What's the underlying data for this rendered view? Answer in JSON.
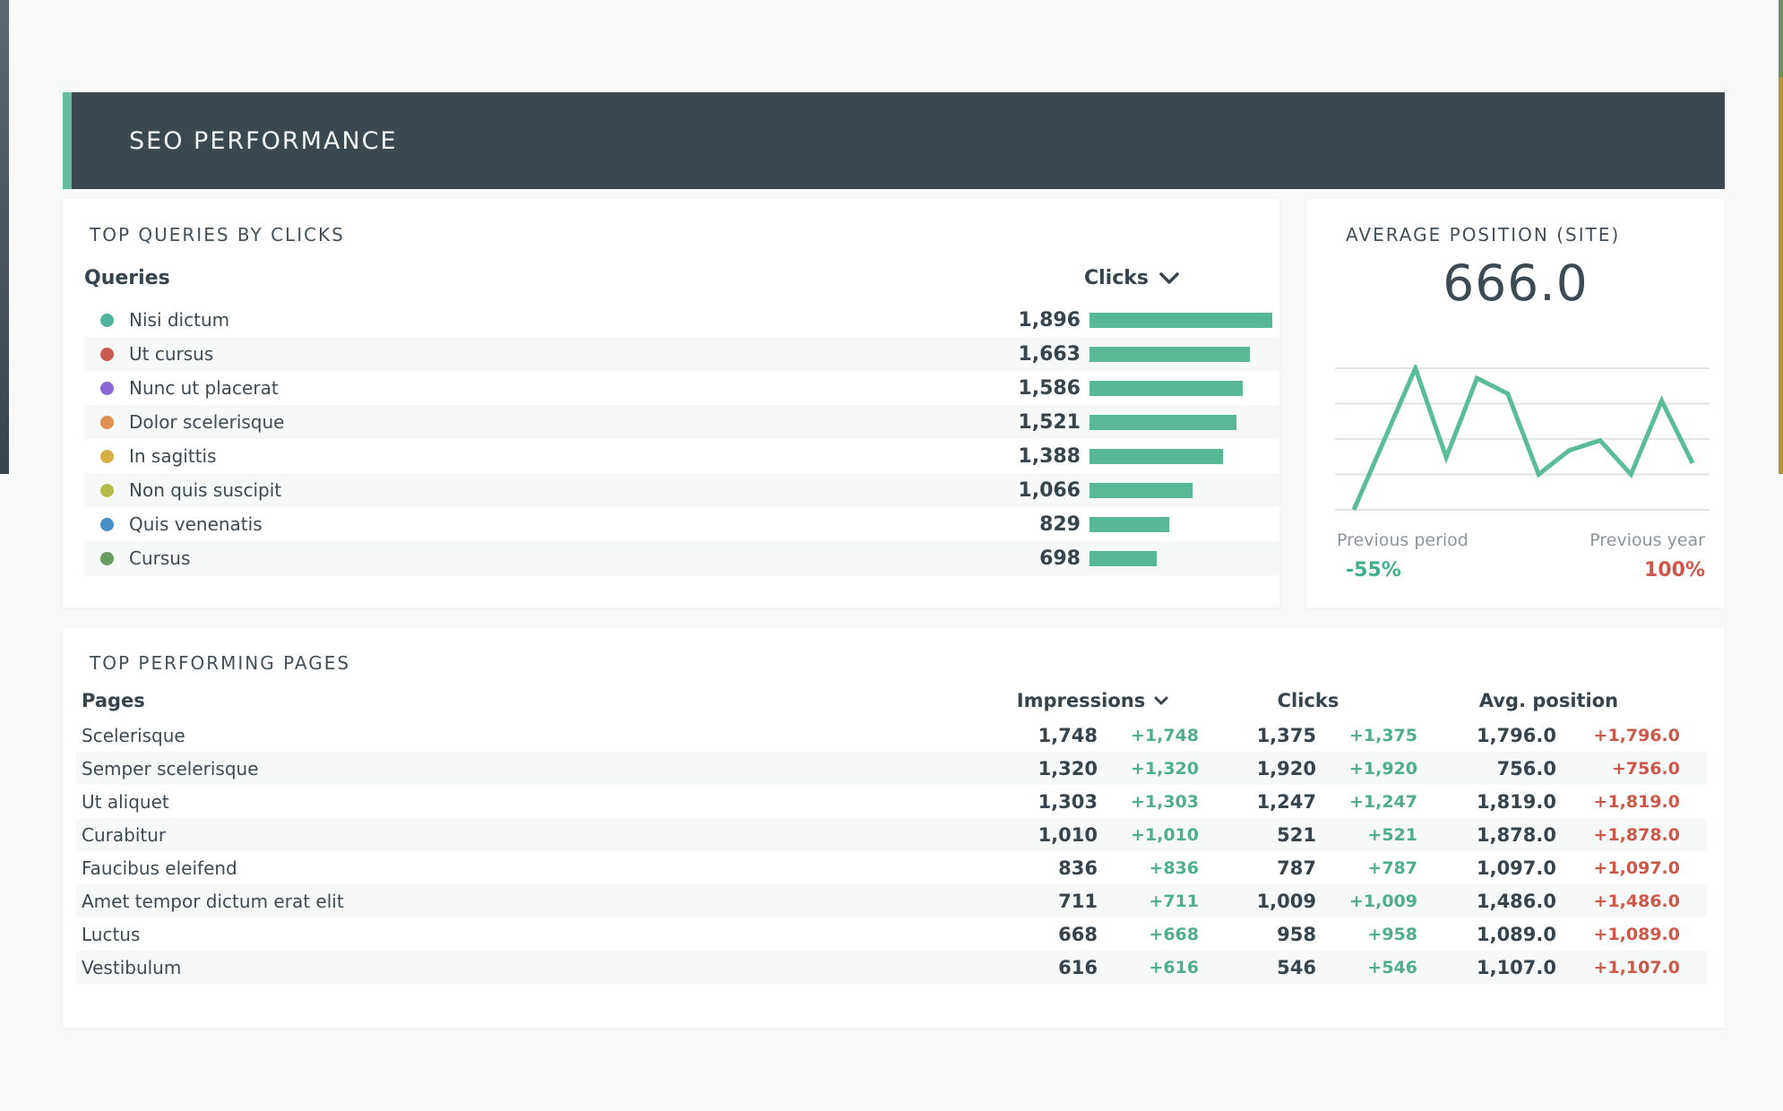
{
  "colors": {
    "accent_green": "#66bd9e",
    "banner_bg": "#3b4850",
    "bar_teal": "#58b795",
    "positive_green": "#4fae8d",
    "negative_red": "#cc584a",
    "text_dark": "#3c4a54",
    "text_muted": "#8b959c"
  },
  "header": {
    "title": "SEO PERFORMANCE"
  },
  "top_queries": {
    "title": "TOP QUERIES BY CLICKS",
    "col_query": "Queries",
    "col_clicks": "Clicks",
    "rows": [
      {
        "label": "Nisi dictum",
        "clicks": "1,896",
        "color": "#4fb39b"
      },
      {
        "label": "Ut cursus",
        "clicks": "1,663",
        "color": "#c95c51"
      },
      {
        "label": "Nunc ut placerat",
        "clicks": "1,586",
        "color": "#8a68d2"
      },
      {
        "label": "Dolor scelerisque",
        "clicks": "1,521",
        "color": "#de9051"
      },
      {
        "label": "In sagittis",
        "clicks": "1,388",
        "color": "#d4af43"
      },
      {
        "label": "Non quis suscipit",
        "clicks": "1,066",
        "color": "#b4bd4a"
      },
      {
        "label": "Quis venenatis",
        "clicks": "829",
        "color": "#478fc4"
      },
      {
        "label": "Cursus",
        "clicks": "698",
        "color": "#689b5e"
      }
    ]
  },
  "avg_position": {
    "title": "AVERAGE POSITION (SITE)",
    "value": "666.0",
    "prev_period_label": "Previous period",
    "prev_period_value": "-55%",
    "prev_year_label": "Previous year",
    "prev_year_value": "100%"
  },
  "top_pages": {
    "title": "TOP PERFORMING PAGES",
    "col_pages": "Pages",
    "col_impressions": "Impressions",
    "col_clicks": "Clicks",
    "col_avg_position": "Avg. position",
    "rows": [
      {
        "page": "Scelerisque",
        "impressions": "1,748",
        "impressions_delta": "+1,748",
        "clicks": "1,375",
        "clicks_delta": "+1,375",
        "avg_position": "1,796.0",
        "avg_position_delta": "+1,796.0"
      },
      {
        "page": "Semper scelerisque",
        "impressions": "1,320",
        "impressions_delta": "+1,320",
        "clicks": "1,920",
        "clicks_delta": "+1,920",
        "avg_position": "756.0",
        "avg_position_delta": "+756.0"
      },
      {
        "page": "Ut aliquet",
        "impressions": "1,303",
        "impressions_delta": "+1,303",
        "clicks": "1,247",
        "clicks_delta": "+1,247",
        "avg_position": "1,819.0",
        "avg_position_delta": "+1,819.0"
      },
      {
        "page": "Curabitur",
        "impressions": "1,010",
        "impressions_delta": "+1,010",
        "clicks": "521",
        "clicks_delta": "+521",
        "avg_position": "1,878.0",
        "avg_position_delta": "+1,878.0"
      },
      {
        "page": "Faucibus eleifend",
        "impressions": "836",
        "impressions_delta": "+836",
        "clicks": "787",
        "clicks_delta": "+787",
        "avg_position": "1,097.0",
        "avg_position_delta": "+1,097.0"
      },
      {
        "page": "Amet tempor dictum erat elit",
        "impressions": "711",
        "impressions_delta": "+711",
        "clicks": "1,009",
        "clicks_delta": "+1,009",
        "avg_position": "1,486.0",
        "avg_position_delta": "+1,486.0"
      },
      {
        "page": "Luctus",
        "impressions": "668",
        "impressions_delta": "+668",
        "clicks": "958",
        "clicks_delta": "+958",
        "avg_position": "1,089.0",
        "avg_position_delta": "+1,089.0"
      },
      {
        "page": "Vestibulum",
        "impressions": "616",
        "impressions_delta": "+616",
        "clicks": "546",
        "clicks_delta": "+546",
        "avg_position": "1,107.0",
        "avg_position_delta": "+1,107.0"
      }
    ]
  },
  "chart_data": [
    {
      "type": "bar",
      "orientation": "horizontal",
      "title": "TOP QUERIES BY CLICKS",
      "categories": [
        "Nisi dictum",
        "Ut cursus",
        "Nunc ut placerat",
        "Dolor scelerisque",
        "In sagittis",
        "Non quis suscipit",
        "Quis venenatis",
        "Cursus"
      ],
      "values": [
        1896,
        1663,
        1586,
        1521,
        1388,
        1066,
        829,
        698
      ],
      "xlim": [
        0,
        1896
      ],
      "bar_color": "#58b795",
      "value_labels": [
        "1,896",
        "1,663",
        "1,586",
        "1,521",
        "1,388",
        "1,066",
        "829",
        "698"
      ],
      "grid": false
    },
    {
      "type": "line",
      "title": "AVERAGE POSITION (SITE)",
      "x": [
        1,
        2,
        3,
        4,
        5,
        6,
        7,
        8,
        9,
        10,
        11,
        12
      ],
      "values": [
        0,
        50,
        100,
        37,
        93,
        82,
        25,
        42,
        49,
        25,
        77,
        33
      ],
      "ylim": [
        0,
        100
      ],
      "line_color": "#5abd97",
      "grid": true,
      "legend": "none",
      "annotations": [
        "Previous period -55%",
        "Previous year 100%"
      ]
    }
  ]
}
